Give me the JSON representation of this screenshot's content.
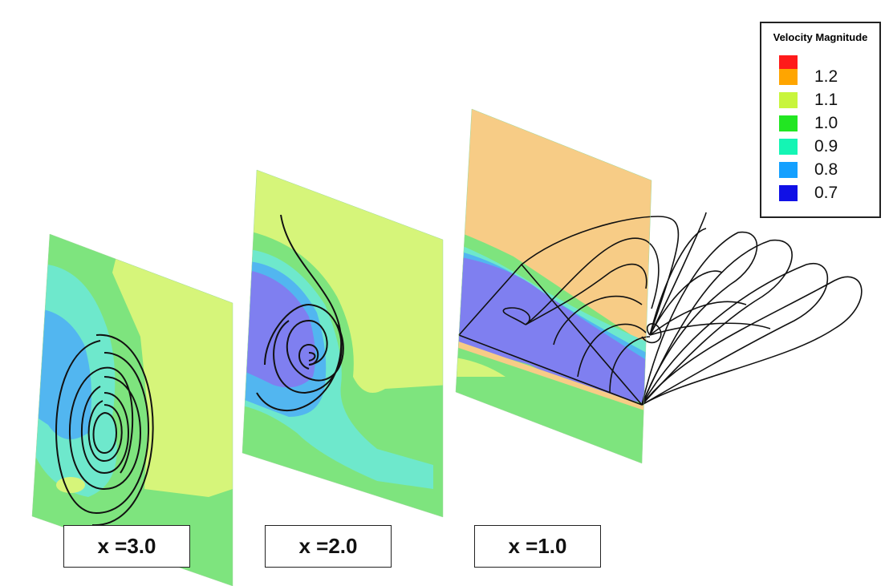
{
  "legend": {
    "title": "Velocity Magnitude",
    "levels": [
      {
        "label": "1.2",
        "color": "#ffa500"
      },
      {
        "label": "1.1",
        "color": "#c8f53c"
      },
      {
        "label": "1.0",
        "color": "#22e622"
      },
      {
        "label": "0.9",
        "color": "#14f5b4"
      },
      {
        "label": "0.8",
        "color": "#14a0ff"
      },
      {
        "label": "0.7",
        "color": "#1010e6"
      }
    ],
    "top_color": "#ff1a1a"
  },
  "slices": [
    {
      "label": "x =3.0"
    },
    {
      "label": "x =2.0"
    },
    {
      "label": "x =1.0"
    }
  ],
  "colors": {
    "green": "#7ee47e",
    "yellow": "#d6f57a",
    "cyan": "#6ee8cc",
    "blue": "#52b6f0",
    "violet": "#7f7ff0",
    "orange": "#f7cc86",
    "streamline": "#111111"
  }
}
